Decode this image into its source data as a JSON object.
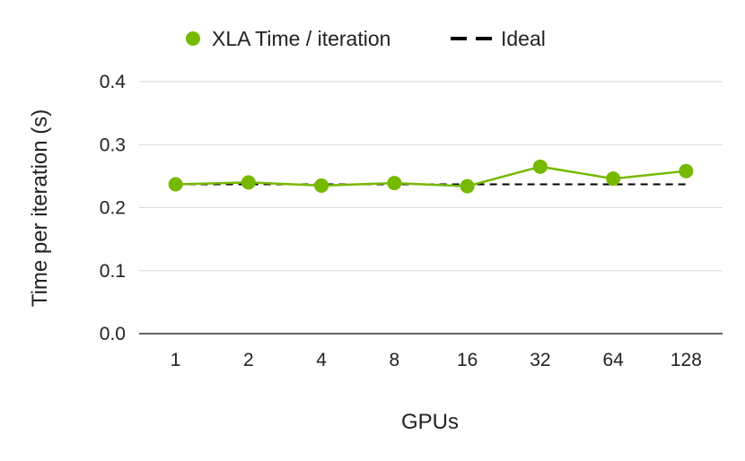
{
  "chart_data": {
    "type": "line",
    "xlabel": "GPUs",
    "ylabel": "Time per iteration (s)",
    "ylim": [
      0,
      0.4
    ],
    "yticks": [
      0.0,
      0.1,
      0.2,
      0.3,
      0.4
    ],
    "ytick_labels": [
      "0.0",
      "0.1",
      "0.2",
      "0.3",
      "0.4"
    ],
    "categories": [
      "1",
      "2",
      "4",
      "8",
      "16",
      "32",
      "64",
      "128"
    ],
    "grid": "horizontal",
    "legend_position": "top",
    "series": [
      {
        "name": "XLA Time / iteration",
        "style": "line-markers",
        "color": "#76b900",
        "values": [
          0.237,
          0.24,
          0.235,
          0.239,
          0.234,
          0.265,
          0.246,
          0.258
        ]
      },
      {
        "name": "Ideal",
        "style": "dashed",
        "color": "#000000",
        "values": [
          0.237,
          0.237,
          0.237,
          0.237,
          0.237,
          0.237,
          0.237,
          0.237
        ]
      }
    ]
  }
}
